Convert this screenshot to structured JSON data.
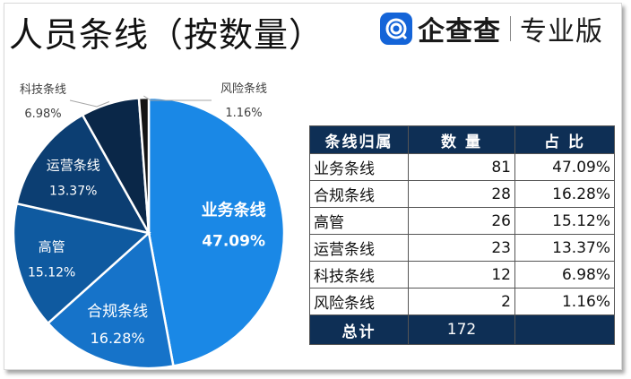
{
  "title": "人员条线（按数量）",
  "brand": {
    "name": "企查查",
    "sub": "专业版",
    "logo": "qichacha-logo-icon"
  },
  "colors": {
    "slices": [
      "#1a88e6",
      "#1673c9",
      "#0f5aa0",
      "#0c3e72",
      "#0a2748",
      "#141414"
    ],
    "header": "#0e2f55"
  },
  "chart_data": {
    "type": "pie",
    "title": "人员条线（按数量）",
    "labels": [
      "业务条线",
      "合规条线",
      "高管",
      "运营条线",
      "科技条线",
      "风险条线"
    ],
    "values": [
      81,
      28,
      26,
      23,
      12,
      2
    ],
    "percent_labels": [
      "47.09%",
      "16.28%",
      "15.12%",
      "13.37%",
      "6.98%",
      "1.16%"
    ],
    "start": "12 o'clock",
    "direction": "clockwise"
  },
  "table": {
    "headers": [
      "条线归属",
      "数 量",
      "占 比"
    ],
    "rows": [
      [
        "业务条线",
        "81",
        "47.09%"
      ],
      [
        "合规条线",
        "28",
        "16.28%"
      ],
      [
        "高管",
        "26",
        "15.12%"
      ],
      [
        "运营条线",
        "23",
        "13.37%"
      ],
      [
        "科技条线",
        "12",
        "6.98%"
      ],
      [
        "风险条线",
        "2",
        "1.16%"
      ]
    ],
    "total_label": "总计",
    "total_value": "172"
  }
}
